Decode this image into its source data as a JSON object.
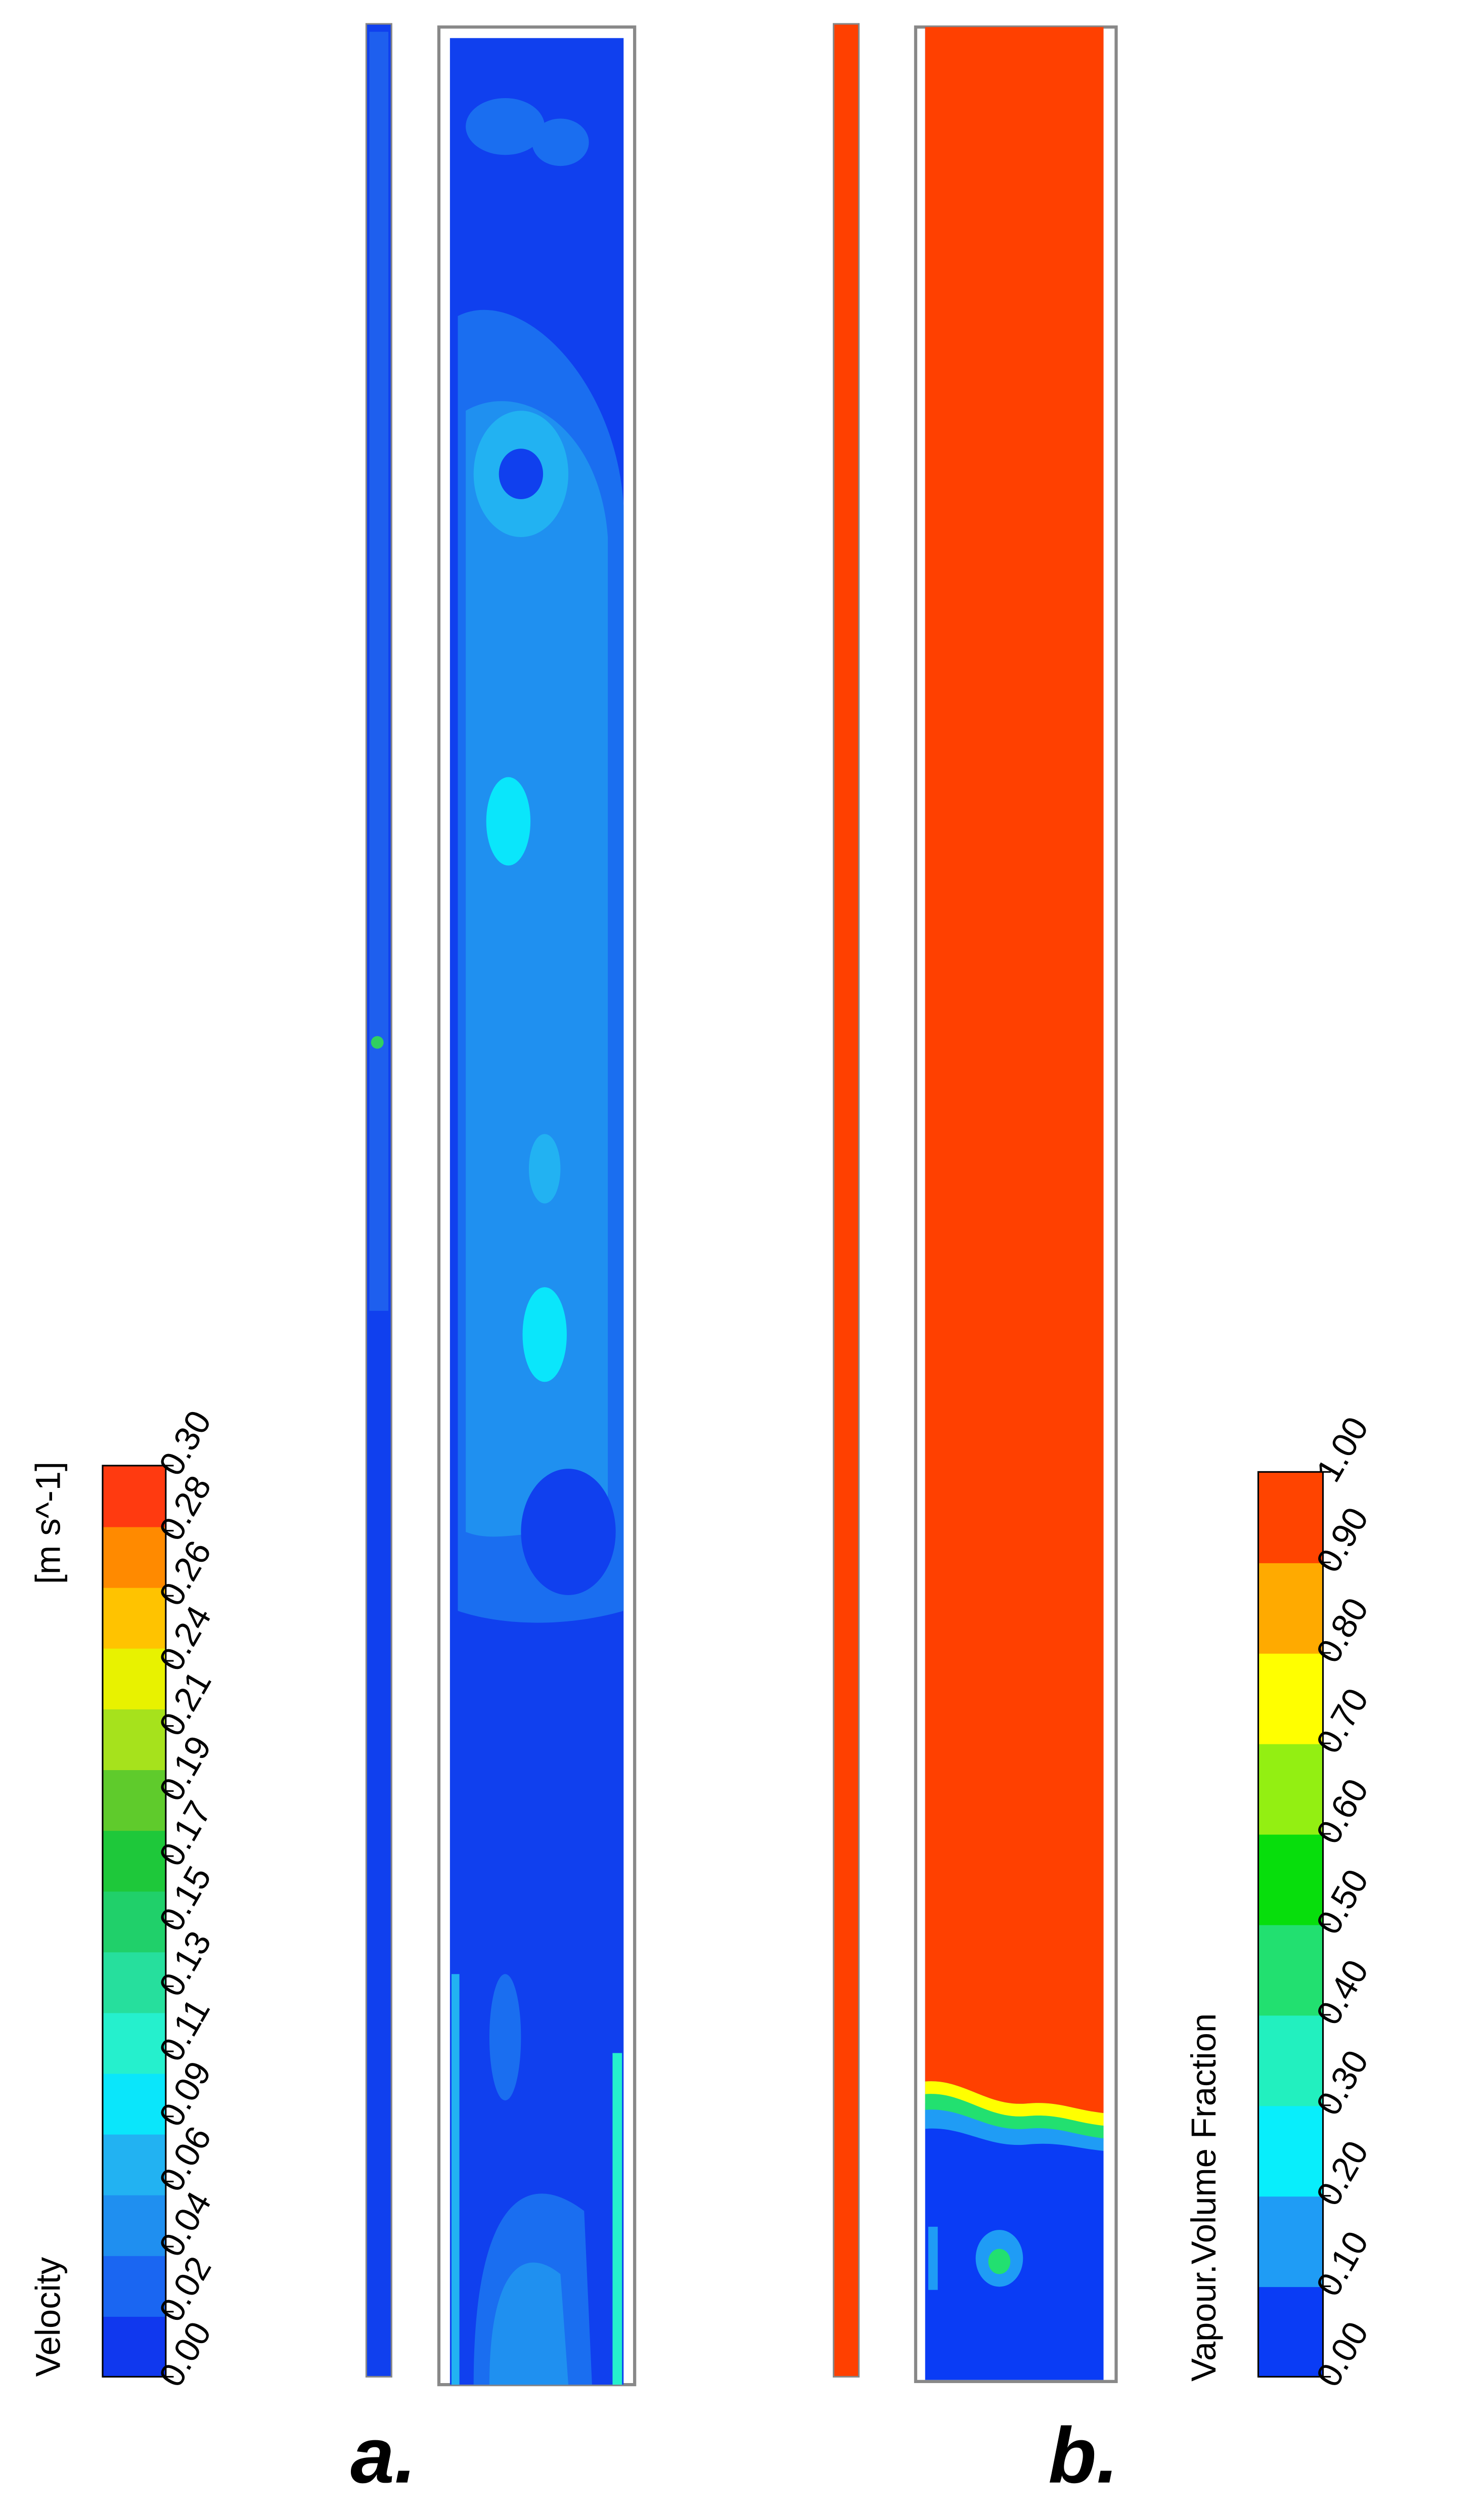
{
  "panel_a": {
    "label": "a.",
    "colorbar": {
      "title": "Velocity",
      "unit": "[m s^-1]",
      "ticks": [
        "0.00",
        "0.02",
        "0.04",
        "0.06",
        "0.09",
        "0.11",
        "0.13",
        "0.15",
        "0.17",
        "0.19",
        "0.21",
        "0.24",
        "0.26",
        "0.28",
        "0.30"
      ],
      "colors": [
        "#1038ee",
        "#1a66f2",
        "#1f8ff0",
        "#22b2f2",
        "#0ae6fb",
        "#25f0cd",
        "#26df9d",
        "#20d06a",
        "#1ec83a",
        "#5fcb2c",
        "#a6e21c",
        "#e8f200",
        "#ffc300",
        "#ff8a00",
        "#ff3a10"
      ]
    }
  },
  "panel_b": {
    "label": "b.",
    "colorbar": {
      "title": "Vapour.Volume Fraction",
      "ticks": [
        "0.00",
        "0.10",
        "0.20",
        "0.30",
        "0.40",
        "0.50",
        "0.60",
        "0.70",
        "0.80",
        "0.90",
        "1.00"
      ],
      "colors": [
        "#0a3cf5",
        "#1f9cf5",
        "#08eefc",
        "#22f0bf",
        "#22e070",
        "#07de0c",
        "#93ef12",
        "#ffff00",
        "#ffaa00",
        "#ff4400"
      ]
    }
  }
}
